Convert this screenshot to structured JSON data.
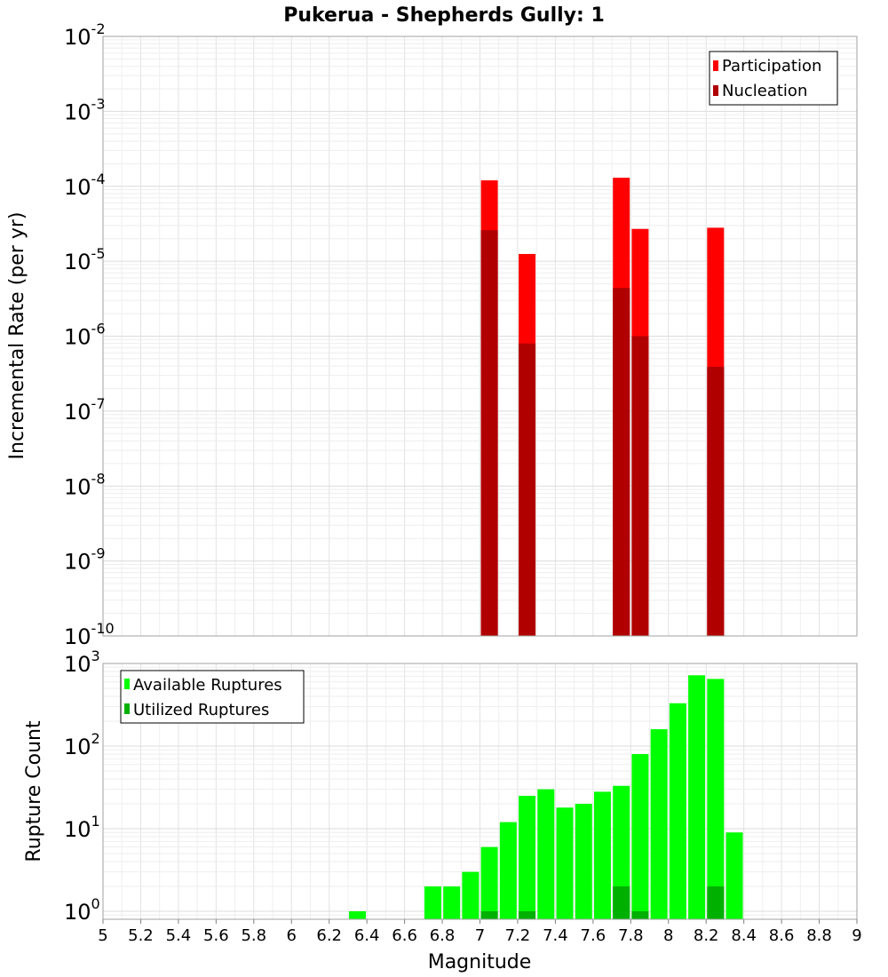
{
  "chart_data": [
    {
      "type": "bar",
      "title": "Pukerua - Shepherds Gully: 1",
      "ylabel": "Incremental Rate (per yr)",
      "xlabel": "",
      "yscale": "log",
      "xlim": [
        5,
        9
      ],
      "ylim": [
        1e-10,
        0.01
      ],
      "y_ticks": [
        {
          "base": "10",
          "exp": "-10"
        },
        {
          "base": "10",
          "exp": "-9"
        },
        {
          "base": "10",
          "exp": "-8"
        },
        {
          "base": "10",
          "exp": "-7"
        },
        {
          "base": "10",
          "exp": "-6"
        },
        {
          "base": "10",
          "exp": "-5"
        },
        {
          "base": "10",
          "exp": "-4"
        },
        {
          "base": "10",
          "exp": "-3"
        },
        {
          "base": "10",
          "exp": "-2"
        }
      ],
      "legend_position": "top-right",
      "series": [
        {
          "name": "Participation",
          "color": "#ff0000",
          "x": [
            7.05,
            7.25,
            7.75,
            7.85,
            8.25
          ],
          "values": [
            0.00012,
            1.25e-05,
            0.00013,
            2.7e-05,
            2.8e-05
          ]
        },
        {
          "name": "Nucleation",
          "color": "#b00000",
          "x": [
            7.05,
            7.25,
            7.75,
            7.85,
            8.25
          ],
          "values": [
            2.6e-05,
            8e-07,
            4.4e-06,
            1e-06,
            3.9e-07
          ]
        }
      ]
    },
    {
      "type": "bar",
      "title": "",
      "ylabel": "Rupture Count",
      "xlabel": "Magnitude",
      "yscale": "log",
      "xlim": [
        5,
        9
      ],
      "ylim": [
        0.8,
        1000
      ],
      "x_ticks": [
        "5",
        "5.2",
        "5.4",
        "5.6",
        "5.8",
        "6",
        "6.2",
        "6.4",
        "6.6",
        "6.8",
        "7",
        "7.2",
        "7.4",
        "7.6",
        "7.8",
        "8",
        "8.2",
        "8.4",
        "8.6",
        "8.8",
        "9"
      ],
      "y_ticks": [
        {
          "base": "10",
          "exp": "0"
        },
        {
          "base": "10",
          "exp": "1"
        },
        {
          "base": "10",
          "exp": "2"
        },
        {
          "base": "10",
          "exp": "3"
        }
      ],
      "legend_position": "top-left",
      "series": [
        {
          "name": "Available Ruptures",
          "color": "#00ff00",
          "x": [
            6.35,
            6.75,
            6.85,
            6.95,
            7.05,
            7.15,
            7.25,
            7.35,
            7.45,
            7.55,
            7.65,
            7.75,
            7.85,
            7.95,
            8.05,
            8.15,
            8.25,
            8.35
          ],
          "values": [
            1,
            2,
            2,
            3,
            6,
            12,
            25,
            30,
            18,
            20,
            28,
            33,
            80,
            160,
            330,
            720,
            650,
            9
          ]
        },
        {
          "name": "Utilized Ruptures",
          "color": "#00b000",
          "x": [
            7.05,
            7.25,
            7.75,
            7.85,
            8.25
          ],
          "values": [
            1,
            1,
            2,
            1,
            2
          ]
        }
      ]
    }
  ]
}
